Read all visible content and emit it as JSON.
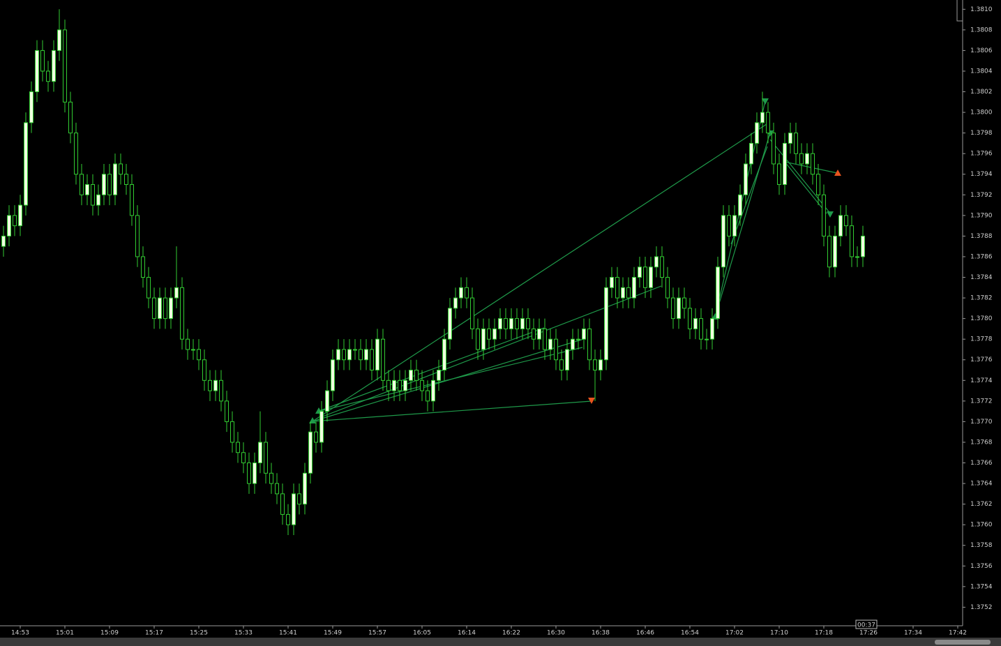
{
  "chart_data": {
    "type": "candlestick",
    "categories": [
      null,
      null,
      null,
      "14:53",
      null,
      null,
      null,
      null,
      null,
      null,
      null,
      "15:01",
      null,
      null,
      null,
      null,
      null,
      null,
      null,
      "15:09",
      null,
      null,
      null,
      null,
      null,
      null,
      null,
      "15:17",
      null,
      null,
      null,
      null,
      null,
      null,
      null,
      "15:25",
      null,
      null,
      null,
      null,
      null,
      null,
      null,
      "15:33",
      null,
      null,
      null,
      null,
      null,
      null,
      null,
      "15:41",
      null,
      null,
      null,
      null,
      null,
      null,
      null,
      "15:49",
      null,
      null,
      null,
      null,
      null,
      null,
      null,
      "15:57",
      null,
      null,
      null,
      null,
      null,
      null,
      null,
      "16:05",
      null,
      null,
      null,
      null,
      null,
      null,
      null,
      "16:14",
      null,
      null,
      null,
      null,
      null,
      null,
      null,
      "16:22",
      null,
      null,
      null,
      null,
      null,
      null,
      null,
      "16:30",
      null,
      null,
      null,
      null,
      null,
      null,
      null,
      "16:38",
      null,
      null,
      null,
      null,
      null,
      null,
      null,
      "16:46",
      null,
      null,
      null,
      null,
      null,
      null,
      null,
      "16:54",
      null,
      null,
      null,
      null,
      null,
      null,
      null,
      "17:02",
      null,
      null,
      null,
      null,
      null,
      null,
      null,
      "17:10",
      null,
      null,
      null,
      null,
      null,
      null,
      null,
      "17:18",
      null,
      null,
      null,
      null,
      null,
      null,
      null,
      "17:26",
      null,
      null,
      null,
      null,
      null,
      null,
      null,
      "17:34",
      null,
      null,
      null,
      null,
      null,
      null,
      null,
      "17:42"
    ],
    "open": [
      1.3787,
      1.3788,
      1.379,
      1.3789,
      1.3791,
      1.3799,
      1.3802,
      1.3806,
      1.3804,
      1.3803,
      1.3806,
      1.3808,
      1.3801,
      1.3798,
      1.3794,
      1.3792,
      1.3793,
      1.3791,
      1.3792,
      1.3794,
      1.3792,
      1.3795,
      1.3794,
      1.3793,
      1.379,
      1.3786,
      1.3784,
      1.3782,
      1.378,
      1.3782,
      1.378,
      1.3782,
      1.3783,
      1.3778,
      1.3777,
      1.3777,
      1.3776,
      1.3774,
      1.3773,
      1.3774,
      1.3772,
      1.377,
      1.3768,
      1.3767,
      1.3766,
      1.3764,
      1.3766,
      1.3768,
      1.3765,
      1.3764,
      1.3763,
      1.3761,
      1.376,
      1.3763,
      1.3762,
      1.3765,
      1.3769,
      1.3768,
      1.3771,
      1.3773,
      1.3776,
      1.3777,
      1.3776,
      1.3777,
      1.3777,
      1.3776,
      1.3777,
      1.3775,
      1.3778,
      1.3774,
      1.3773,
      1.3774,
      1.3773,
      1.3774,
      1.3775,
      1.3774,
      1.3773,
      1.3772,
      1.3774,
      1.3775,
      1.3778,
      1.3781,
      1.3782,
      1.3783,
      1.3782,
      1.3779,
      1.3777,
      1.3779,
      1.3778,
      1.3779,
      1.378,
      1.3779,
      1.378,
      1.3779,
      1.378,
      1.3779,
      1.3778,
      1.3779,
      1.3777,
      1.3778,
      1.3776,
      1.3775,
      1.3777,
      1.3778,
      1.3778,
      1.3779,
      1.3776,
      1.3775,
      1.3776,
      1.3783,
      1.3784,
      1.3782,
      1.3783,
      1.3782,
      1.3784,
      1.3785,
      1.3783,
      1.3785,
      1.3786,
      1.3784,
      1.3782,
      1.378,
      1.3782,
      1.3781,
      1.3779,
      1.378,
      1.3778,
      1.3778,
      1.378,
      1.3785,
      1.379,
      1.3788,
      1.379,
      1.3792,
      1.3795,
      1.3797,
      1.3799,
      1.38,
      1.3798,
      1.3795,
      1.3793,
      1.3797,
      1.3798,
      1.3796,
      1.3795,
      1.3796,
      1.3794,
      1.3792,
      1.3788,
      1.3785,
      1.3788,
      1.379,
      1.3789,
      1.3786,
      1.3786,
      null,
      null,
      null,
      null,
      null,
      null,
      null,
      null,
      null,
      null,
      null,
      null,
      null,
      null,
      null,
      null,
      null
    ],
    "high": [
      1.3789,
      1.3791,
      1.3791,
      1.3792,
      1.38,
      1.3803,
      1.3807,
      1.3807,
      1.3805,
      1.3807,
      1.381,
      1.3809,
      1.3802,
      1.3799,
      1.3795,
      1.3794,
      1.3794,
      1.3793,
      1.3795,
      1.3795,
      1.3796,
      1.3796,
      1.3795,
      1.3794,
      1.3791,
      1.3787,
      1.3785,
      1.3783,
      1.3783,
      1.3783,
      1.3783,
      1.3787,
      1.3784,
      1.3779,
      1.3778,
      1.3778,
      1.3777,
      1.3775,
      1.3775,
      1.3775,
      1.3773,
      1.3771,
      1.3769,
      1.3768,
      1.3767,
      1.3767,
      1.3771,
      1.3769,
      1.3766,
      1.3765,
      1.3764,
      1.3762,
      1.3764,
      1.3764,
      1.3766,
      1.377,
      1.377,
      1.3772,
      1.3774,
      1.3777,
      1.3778,
      1.3778,
      1.3778,
      1.3778,
      1.3778,
      1.3778,
      1.3778,
      1.3779,
      1.3779,
      1.3775,
      1.3775,
      1.3775,
      1.3775,
      1.3776,
      1.3776,
      1.3775,
      1.3774,
      1.3775,
      1.3776,
      1.3779,
      1.3782,
      1.3783,
      1.3784,
      1.3784,
      1.3783,
      1.378,
      1.378,
      1.378,
      1.378,
      1.3781,
      1.3781,
      1.3781,
      1.3781,
      1.3781,
      1.3781,
      1.378,
      1.378,
      1.378,
      1.3779,
      1.3779,
      1.3777,
      1.3778,
      1.3779,
      1.3779,
      1.378,
      1.378,
      1.3777,
      1.3777,
      1.3784,
      1.3785,
      1.3785,
      1.3784,
      1.3784,
      1.3785,
      1.3786,
      1.3786,
      1.3786,
      1.3787,
      1.3787,
      1.3785,
      1.3783,
      1.3783,
      1.3783,
      1.3782,
      1.3781,
      1.3781,
      1.3779,
      1.3781,
      1.3786,
      1.3791,
      1.3791,
      1.3791,
      1.3793,
      1.3796,
      1.3798,
      1.38,
      1.3802,
      1.3801,
      1.3799,
      1.3796,
      1.3798,
      1.3799,
      1.3799,
      1.3797,
      1.3797,
      1.3797,
      1.3795,
      1.3793,
      1.3789,
      1.3789,
      1.3791,
      1.3791,
      1.379,
      1.3787,
      1.3789,
      null,
      null,
      null,
      null,
      null,
      null,
      null,
      null,
      null,
      null,
      null,
      null,
      null,
      null,
      null,
      null,
      null
    ],
    "low": [
      1.3786,
      1.3787,
      1.3788,
      1.3788,
      1.379,
      1.3798,
      1.3801,
      1.3803,
      1.3802,
      1.3802,
      1.3805,
      1.38,
      1.3797,
      1.3793,
      1.3791,
      1.3791,
      1.379,
      1.379,
      1.3791,
      1.3791,
      1.3791,
      1.3793,
      1.3792,
      1.3789,
      1.3785,
      1.3783,
      1.3781,
      1.3779,
      1.3779,
      1.3779,
      1.3779,
      1.3781,
      1.3777,
      1.3776,
      1.3776,
      1.3775,
      1.3773,
      1.3772,
      1.3772,
      1.3771,
      1.3769,
      1.3767,
      1.3766,
      1.3765,
      1.3763,
      1.3763,
      1.3765,
      1.3764,
      1.3763,
      1.3762,
      1.376,
      1.3759,
      1.3759,
      1.3761,
      1.3761,
      1.3764,
      1.3767,
      1.3767,
      1.377,
      1.3772,
      1.3775,
      1.3775,
      1.3775,
      1.3776,
      1.3775,
      1.3775,
      1.3774,
      1.3774,
      1.3773,
      1.3772,
      1.3772,
      1.3772,
      1.3772,
      1.3773,
      1.3773,
      1.3772,
      1.3771,
      1.3771,
      1.3773,
      1.3774,
      1.3777,
      1.378,
      1.3781,
      1.3781,
      1.3778,
      1.3776,
      1.3776,
      1.3777,
      1.3777,
      1.3778,
      1.3778,
      1.3778,
      1.3778,
      1.3778,
      1.3778,
      1.3777,
      1.3777,
      1.3776,
      1.3776,
      1.3775,
      1.3774,
      1.3774,
      1.3776,
      1.3777,
      1.3777,
      1.3775,
      1.3772,
      1.3774,
      1.3775,
      1.3782,
      1.3781,
      1.3781,
      1.3781,
      1.3781,
      1.3783,
      1.3782,
      1.3782,
      1.3784,
      1.3783,
      1.3781,
      1.3779,
      1.3779,
      1.378,
      1.3778,
      1.3778,
      1.3777,
      1.3777,
      1.3777,
      1.3779,
      1.3784,
      1.3787,
      1.3787,
      1.3789,
      1.3791,
      1.3794,
      1.3796,
      1.3798,
      1.3797,
      1.3794,
      1.3792,
      1.3792,
      1.3796,
      1.3795,
      1.3794,
      1.3794,
      1.3793,
      1.3791,
      1.3787,
      1.3784,
      1.3784,
      1.3787,
      1.3788,
      1.3785,
      1.3785,
      1.3785,
      null,
      null,
      null,
      null,
      null,
      null,
      null,
      null,
      null,
      null,
      null,
      null,
      null,
      null,
      null,
      null,
      null
    ],
    "close": [
      1.3788,
      1.379,
      1.3789,
      1.3791,
      1.3799,
      1.3802,
      1.3806,
      1.3804,
      1.3803,
      1.3806,
      1.3808,
      1.3801,
      1.3798,
      1.3794,
      1.3792,
      1.3793,
      1.3791,
      1.3792,
      1.3794,
      1.3792,
      1.3795,
      1.3794,
      1.3793,
      1.379,
      1.3786,
      1.3784,
      1.3782,
      1.378,
      1.3782,
      1.378,
      1.3782,
      1.3783,
      1.3778,
      1.3777,
      1.3777,
      1.3776,
      1.3774,
      1.3773,
      1.3774,
      1.3772,
      1.377,
      1.3768,
      1.3767,
      1.3766,
      1.3764,
      1.3766,
      1.3768,
      1.3765,
      1.3764,
      1.3763,
      1.3761,
      1.376,
      1.3763,
      1.3762,
      1.3765,
      1.3769,
      1.3768,
      1.3771,
      1.3773,
      1.3776,
      1.3777,
      1.3776,
      1.3777,
      1.3777,
      1.3776,
      1.3777,
      1.3775,
      1.3778,
      1.3774,
      1.3773,
      1.3774,
      1.3773,
      1.3774,
      1.3775,
      1.3774,
      1.3773,
      1.3772,
      1.3774,
      1.3775,
      1.3778,
      1.3781,
      1.3782,
      1.3783,
      1.3782,
      1.3779,
      1.3777,
      1.3779,
      1.3778,
      1.3779,
      1.378,
      1.3779,
      1.378,
      1.3779,
      1.378,
      1.3779,
      1.3778,
      1.3779,
      1.3777,
      1.3778,
      1.3776,
      1.3775,
      1.3777,
      1.3778,
      1.3778,
      1.3779,
      1.3776,
      1.3775,
      1.3776,
      1.3783,
      1.3784,
      1.3782,
      1.3783,
      1.3782,
      1.3784,
      1.3785,
      1.3783,
      1.3785,
      1.3786,
      1.3784,
      1.3782,
      1.378,
      1.3782,
      1.3781,
      1.3779,
      1.378,
      1.3778,
      1.3778,
      1.378,
      1.3785,
      1.379,
      1.3788,
      1.379,
      1.3792,
      1.3795,
      1.3797,
      1.3799,
      1.38,
      1.3798,
      1.3795,
      1.3793,
      1.3797,
      1.3798,
      1.3796,
      1.3795,
      1.3796,
      1.3794,
      1.3792,
      1.3788,
      1.3785,
      1.3788,
      1.379,
      1.3789,
      1.3786,
      1.3786,
      1.3788,
      null,
      null,
      null,
      null,
      null,
      null,
      null,
      null,
      null,
      null,
      null,
      null,
      null,
      null,
      null,
      null,
      null
    ],
    "up_color": "#f0ffe0",
    "down_color": "#000000",
    "wick_color": "#32cd32",
    "ylim": [
      1.37502,
      1.38109
    ],
    "yticks": [
      {
        "value": 1.381,
        "label": "1.3810"
      },
      1.3808,
      1.3806,
      1.3804,
      1.3802,
      {
        "value": 1.38,
        "label": "1.3800"
      },
      1.3798,
      1.3796,
      1.3794,
      1.3792,
      {
        "value": 1.379,
        "label": "1.3790"
      },
      1.3788,
      1.3786,
      1.3784,
      1.3782,
      {
        "value": 1.378,
        "label": "1.3780"
      },
      1.3778,
      1.3776,
      1.3774,
      1.3772,
      {
        "value": 1.377,
        "label": "1.3770"
      },
      1.3768,
      1.3766,
      1.3764,
      1.3762,
      {
        "value": 1.376,
        "label": "1.3760"
      },
      1.3758,
      1.3756,
      1.3754,
      1.3752
    ],
    "grid": false,
    "timer": "00:37"
  }
}
